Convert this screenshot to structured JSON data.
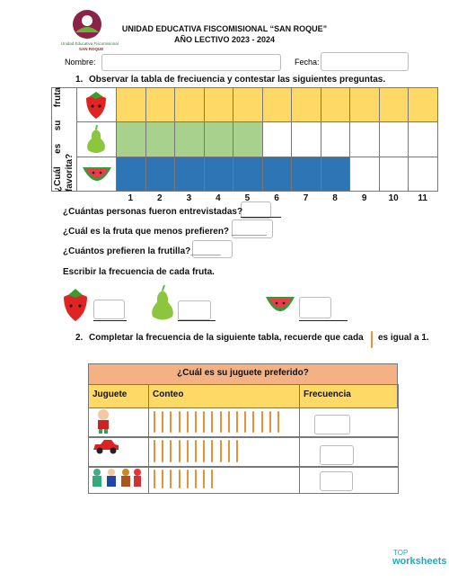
{
  "header": {
    "school": "UNIDAD EDUCATIVA FISCOMISIONAL “SAN ROQUE”",
    "year": "AÑO LECTIVO 2023 - 2024",
    "logo_text": "Unidad Educativa Fiscomisional",
    "logo_subtext": "SAN ROQUE",
    "name_label": "Nombre:",
    "date_label": "Fecha:"
  },
  "section1": {
    "number": "1.",
    "instruction": "Observar la tabla de freciuencia y contestar las siguientes preguntas.",
    "row_header": "¿Cuál es su fruta favorita?",
    "counts": [
      11,
      5,
      8
    ],
    "colors": [
      "#FFD966",
      "#A9D18E",
      "#2E75B6"
    ],
    "scale": [
      1,
      2,
      3,
      4,
      5,
      6,
      7,
      8,
      9,
      10,
      11
    ],
    "questions": [
      "¿Cuántas personas fueron entrevistadas?",
      "¿Cuál es la fruta que menos prefieren? _______",
      "¿Cuántos prefieren la frutilla?______"
    ],
    "write_prompt": "Escribir la frecuencia de cada fruta."
  },
  "section2": {
    "number": "2.",
    "instruction_before": "Completar la frecuencia de la siguiente tabla, recuerde que cada",
    "instruction_after": "es igual a 1.",
    "title": "¿Cuál es su juguete preferido?",
    "columns": [
      "Juguete",
      "Conteo",
      "Frecuencia"
    ],
    "tallies": [
      16,
      11,
      8
    ]
  },
  "footer": {
    "brand_top": "TOP",
    "brand": "worksheets"
  }
}
